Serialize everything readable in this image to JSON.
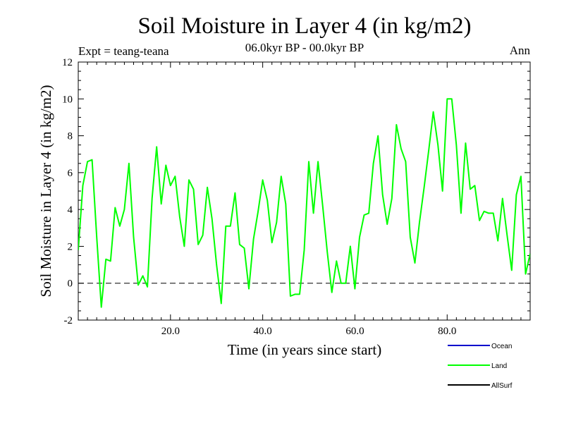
{
  "chart_data": {
    "type": "line",
    "title": "Soil Moisture in Layer 4 (in kg/m2)",
    "subtitle": "06.0kyr BP - 00.0kyr BP",
    "left_annotation": "Expt = teang-teana",
    "right_annotation": "Ann",
    "xlabel": "Time (in years since start)",
    "ylabel": "Soil Moisture in Layer 4 (in kg/m2)",
    "xlim": [
      0,
      98
    ],
    "ylim": [
      -2,
      12
    ],
    "x_ticks": [
      20,
      40,
      60,
      80
    ],
    "x_tick_labels": [
      "20.0",
      "40.0",
      "60.0",
      "80.0"
    ],
    "y_ticks": [
      -2,
      0,
      2,
      4,
      6,
      8,
      10,
      12
    ],
    "y_tick_labels": [
      "-2",
      "0",
      "2",
      "4",
      "6",
      "8",
      "10",
      "12"
    ],
    "zero_line": true,
    "legend": [
      {
        "name": "Ocean",
        "color": "#0000cc"
      },
      {
        "name": "Land",
        "color": "#00ff00"
      },
      {
        "name": "AllSurf",
        "color": "#000000"
      }
    ],
    "series": [
      {
        "name": "Land",
        "color": "#00ff00",
        "x": [
          0,
          1,
          2,
          3,
          4,
          5,
          6,
          7,
          8,
          9,
          10,
          11,
          12,
          13,
          14,
          15,
          16,
          17,
          18,
          19,
          20,
          21,
          22,
          23,
          24,
          25,
          26,
          27,
          28,
          29,
          30,
          31,
          32,
          33,
          34,
          35,
          36,
          37,
          38,
          39,
          40,
          41,
          42,
          43,
          44,
          45,
          46,
          47,
          48,
          49,
          50,
          51,
          52,
          53,
          54,
          55,
          56,
          57,
          58,
          59,
          60,
          61,
          62,
          63,
          64,
          65,
          66,
          67,
          68,
          69,
          70,
          71,
          72,
          73,
          74,
          75,
          76,
          77,
          78,
          79,
          80,
          81,
          82,
          83,
          84,
          85,
          86,
          87,
          88,
          89,
          90,
          91,
          92,
          93,
          94,
          95,
          96,
          97,
          98
        ],
        "values": [
          1.8,
          5.3,
          6.6,
          6.7,
          2.5,
          -1.3,
          1.3,
          1.2,
          4.1,
          3.1,
          4.0,
          6.5,
          2.5,
          -0.1,
          0.4,
          -0.2,
          4.6,
          7.4,
          4.3,
          6.4,
          5.3,
          5.8,
          3.6,
          2.0,
          5.6,
          5.1,
          2.1,
          2.6,
          5.2,
          3.5,
          1.0,
          -1.1,
          3.1,
          3.1,
          4.9,
          2.1,
          1.9,
          -0.3,
          2.4,
          3.9,
          5.6,
          4.5,
          2.2,
          3.3,
          5.8,
          4.3,
          -0.7,
          -0.6,
          -0.6,
          1.8,
          6.6,
          3.8,
          6.6,
          4.2,
          1.7,
          -0.5,
          1.2,
          0.0,
          0.0,
          2.0,
          -0.3,
          2.5,
          3.7,
          3.8,
          6.5,
          8.0,
          4.8,
          3.2,
          4.6,
          8.6,
          7.3,
          6.6,
          2.5,
          1.1,
          3.3,
          5.2,
          7.2,
          9.3,
          7.5,
          5.0,
          10.0,
          10.0,
          7.5,
          3.8,
          7.6,
          5.1,
          5.3,
          3.4,
          3.9,
          3.8,
          3.8,
          2.3,
          4.6,
          2.6,
          0.7,
          4.8,
          5.8,
          0.5,
          1.6
        ]
      }
    ]
  }
}
